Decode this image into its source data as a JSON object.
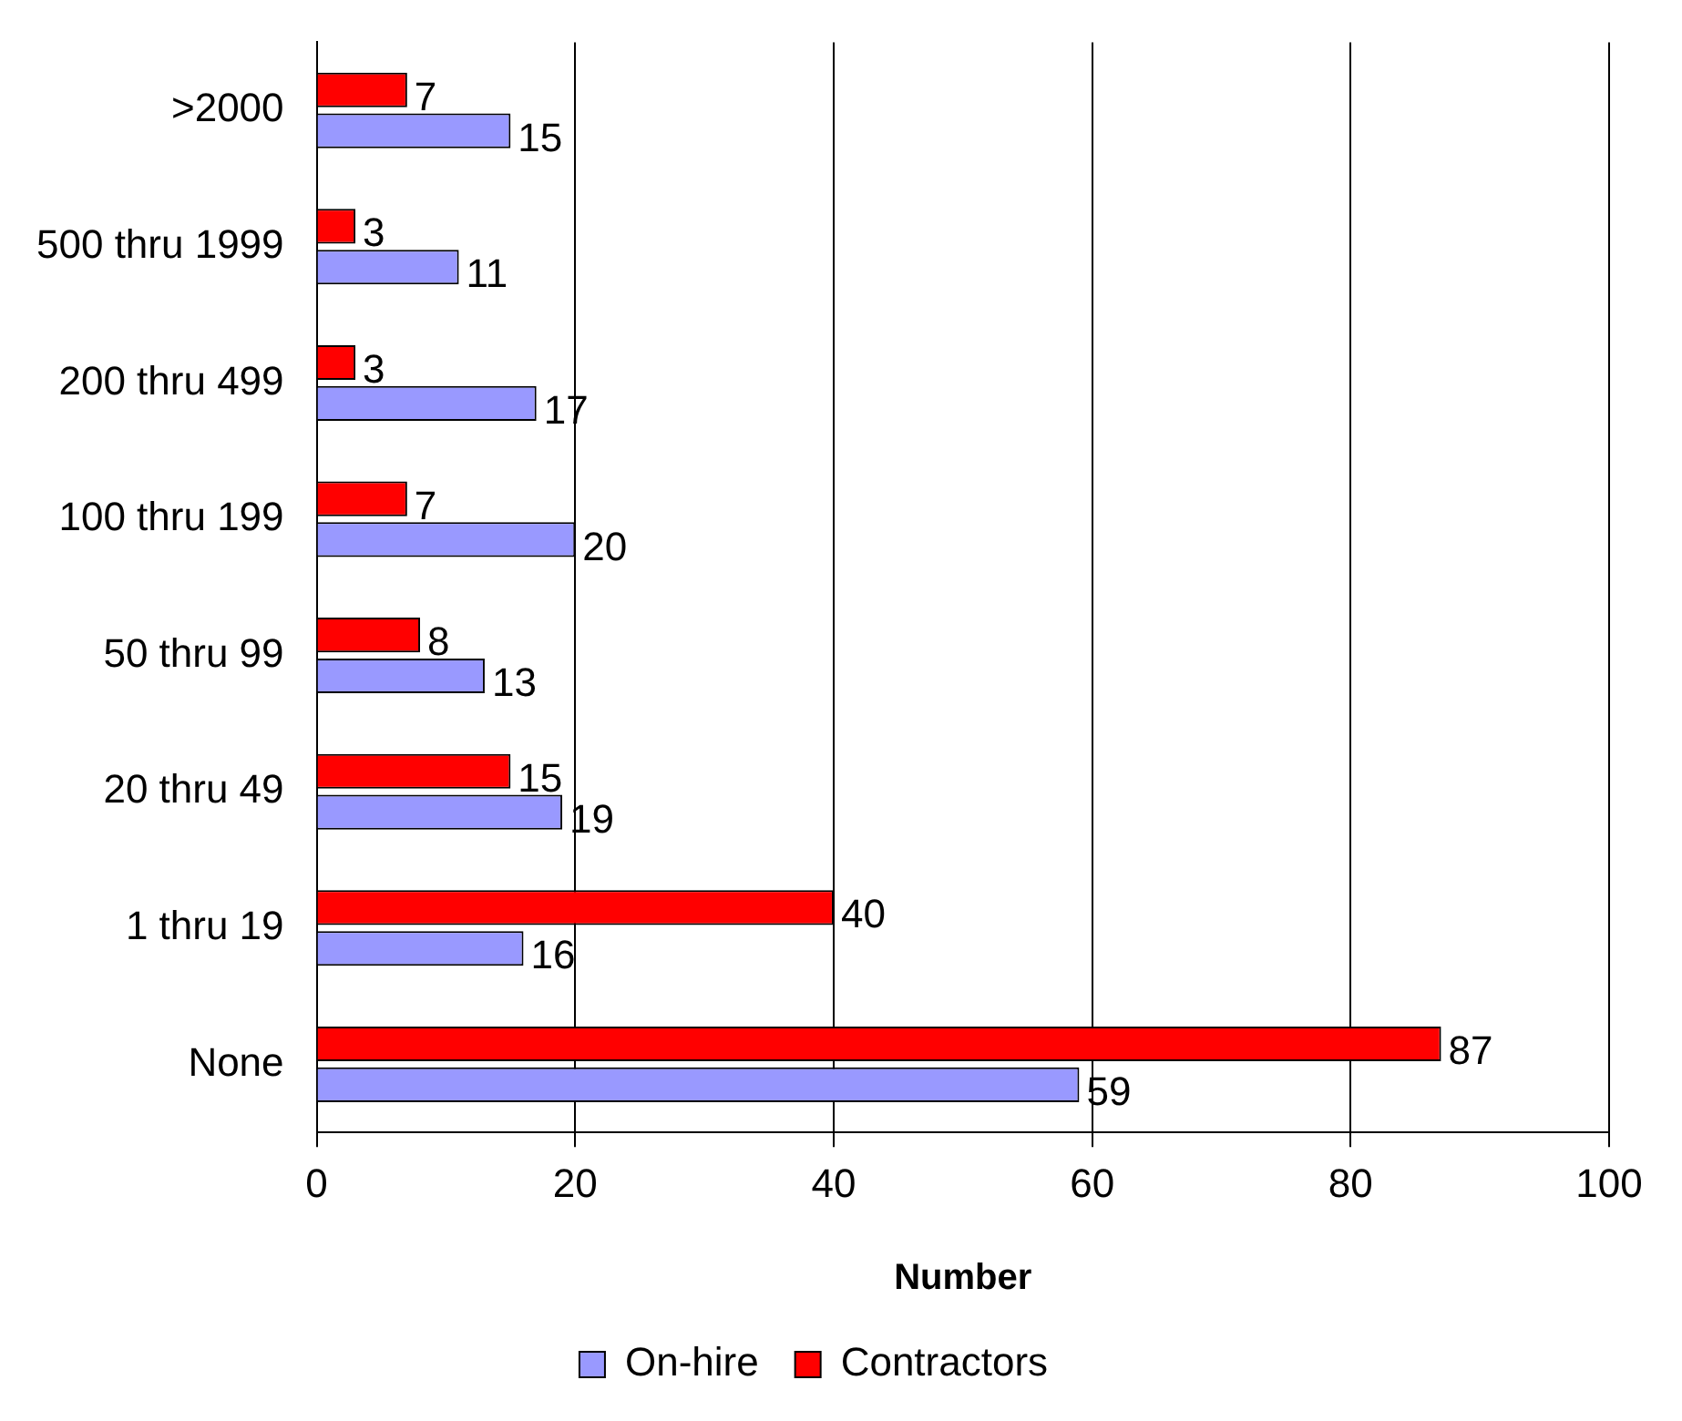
{
  "chart_data": {
    "type": "bar",
    "orientation": "horizontal",
    "xlabel": "Number",
    "categories": [
      ">2000",
      "500 thru 1999",
      "200 thru 499",
      "100 thru 199",
      "50 thru 99",
      "20 thru 49",
      "1 thru 19",
      "None"
    ],
    "series": [
      {
        "name": "On-hire",
        "color": "#9999ff",
        "values": [
          15,
          11,
          17,
          20,
          13,
          19,
          16,
          59
        ]
      },
      {
        "name": "Contractors",
        "color": "#ff0000",
        "values": [
          7,
          3,
          3,
          7,
          8,
          15,
          40,
          87
        ]
      }
    ],
    "xlim": [
      0,
      100
    ],
    "xticks": [
      0,
      20,
      40,
      60,
      80,
      100
    ],
    "grid": "x",
    "legend": "bottom",
    "data_labels": true
  }
}
